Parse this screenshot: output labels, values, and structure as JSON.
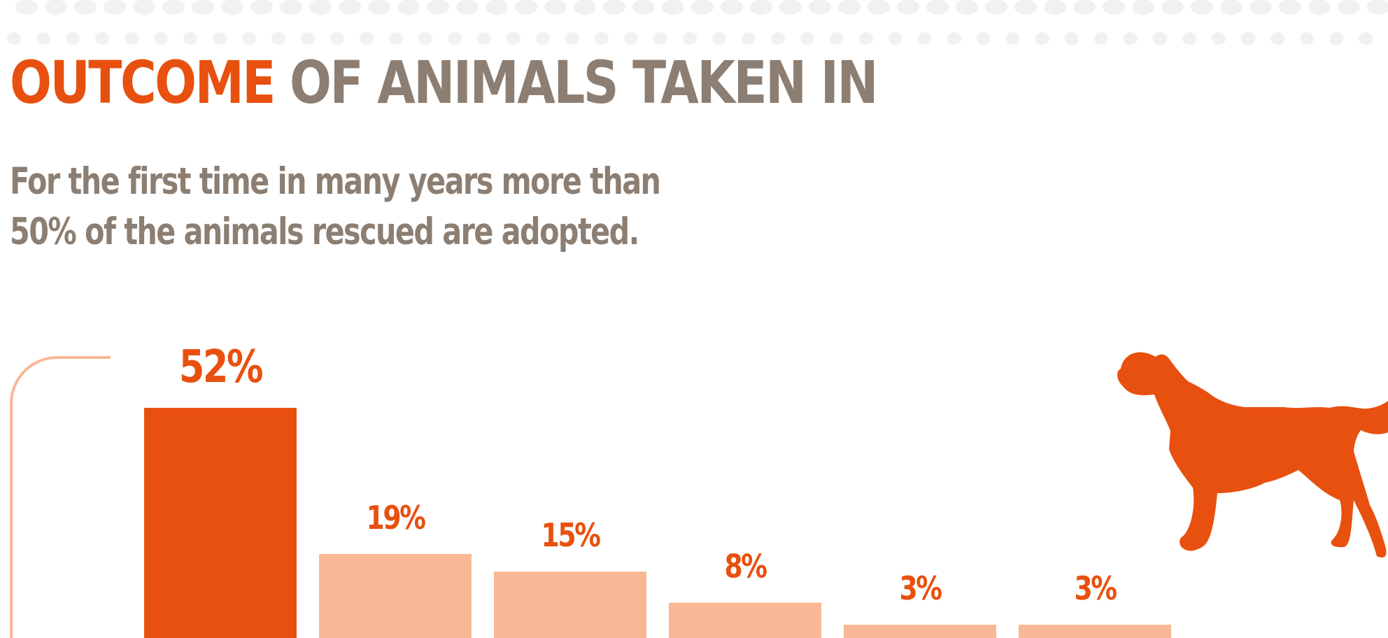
{
  "title": {
    "accent": "OUTCOME",
    "rest": " OF ANIMALS TAKEN IN"
  },
  "subtitle": "For the first time in many years more than 50% of the animals rescued are adopted.",
  "colors": {
    "accent": "#E8500F",
    "secondary": "#F8B896",
    "text": "#8C7E72",
    "pattern": "#F3F1EF"
  },
  "icons": [
    "dog-silhouette-icon",
    "paw-pattern-icon"
  ],
  "chart_data": {
    "type": "bar",
    "values": [
      52,
      19,
      15,
      8,
      3,
      3
    ],
    "labels": [
      "52%",
      "19%",
      "15%",
      "8%",
      "3%",
      "3%"
    ],
    "highlight_index": 0,
    "ylim": [
      0,
      60
    ],
    "grid": false
  }
}
